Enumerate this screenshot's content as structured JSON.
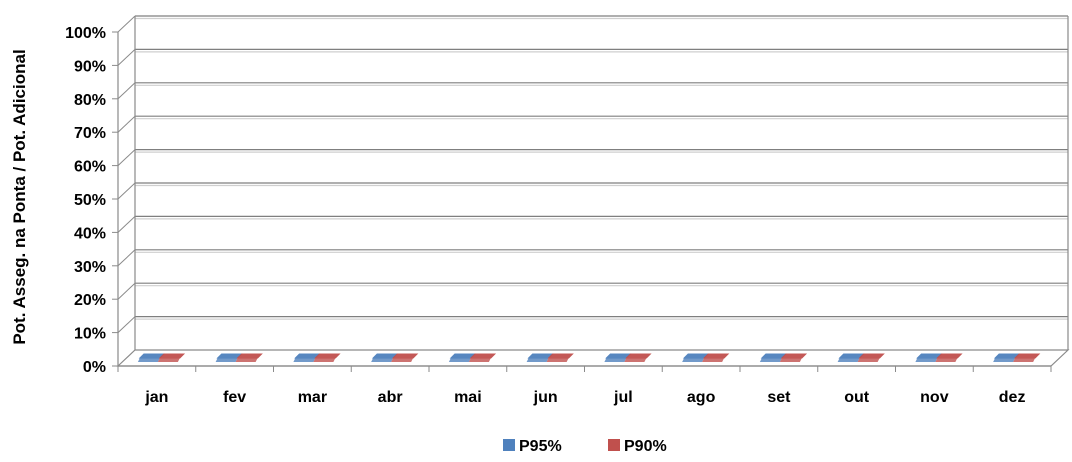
{
  "chart_data": {
    "type": "bar",
    "three_d": true,
    "title": "",
    "ylabel": "Pot. Asseg. na Ponta / Pot. Adicional",
    "xlabel": "",
    "categories": [
      "jan",
      "fev",
      "mar",
      "abr",
      "mai",
      "jun",
      "jul",
      "ago",
      "set",
      "out",
      "nov",
      "dez"
    ],
    "y_ticks": [
      "0%",
      "10%",
      "20%",
      "30%",
      "40%",
      "50%",
      "60%",
      "70%",
      "80%",
      "90%",
      "100%"
    ],
    "ylim": [
      0,
      100
    ],
    "grid": true,
    "legend_position": "bottom",
    "series": [
      {
        "name": "P95%",
        "color": "#4F81BD",
        "values": [
          0,
          0,
          0,
          0,
          0,
          0,
          0,
          0,
          0,
          0,
          0,
          0
        ]
      },
      {
        "name": "P90%",
        "color": "#C0504D",
        "values": [
          0,
          0,
          0,
          0,
          0,
          0,
          0,
          0,
          0,
          0,
          0,
          0
        ]
      }
    ]
  }
}
